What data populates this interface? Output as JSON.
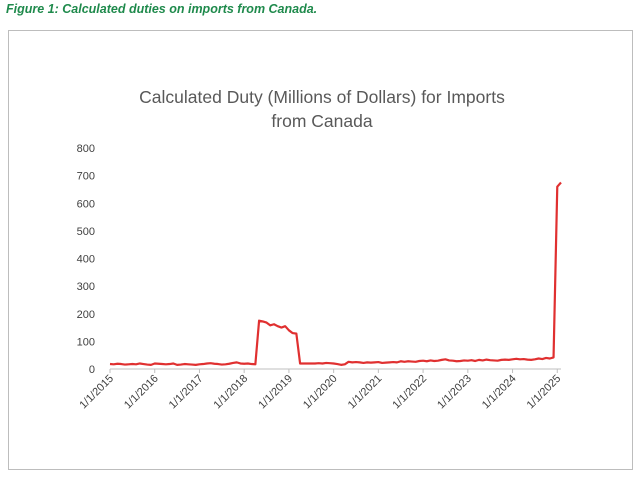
{
  "caption": "Figure 1: Calculated duties on imports from Canada.",
  "colors": {
    "caption": "#1f8a4c",
    "series": "#e03030",
    "axis": "#bfbfbf",
    "text": "#404040"
  },
  "chart_data": {
    "type": "line",
    "title_lines": [
      "Calculated Duty (Millions of Dollars) for Imports",
      "from Canada"
    ],
    "xlabel": "",
    "ylabel": "",
    "ylim": [
      0,
      800
    ],
    "y_ticks": [
      0,
      100,
      200,
      300,
      400,
      500,
      600,
      700,
      800
    ],
    "grid": false,
    "legend": "none",
    "x_start": "2015-01",
    "x_tick_labels": [
      "1/1/2015",
      "1/1/2016",
      "1/1/2017",
      "1/1/2018",
      "1/1/2019",
      "1/1/2020",
      "1/1/2021",
      "1/1/2022",
      "1/1/2023",
      "1/1/2024",
      "1/1/2025"
    ],
    "series": [
      {
        "values": [
          18,
          17,
          19,
          18,
          16,
          17,
          18,
          17,
          20,
          18,
          16,
          15,
          20,
          19,
          18,
          17,
          18,
          20,
          15,
          16,
          18,
          17,
          16,
          15,
          17,
          18,
          20,
          21,
          19,
          18,
          16,
          17,
          19,
          22,
          24,
          20,
          19,
          20,
          18,
          17,
          175,
          172,
          168,
          158,
          162,
          155,
          150,
          155,
          140,
          130,
          128,
          20,
          20,
          20,
          20,
          20,
          21,
          20,
          22,
          21,
          20,
          18,
          15,
          17,
          26,
          24,
          25,
          24,
          22,
          24,
          23,
          24,
          25,
          22,
          23,
          24,
          25,
          24,
          28,
          26,
          28,
          27,
          26,
          29,
          30,
          28,
          31,
          29,
          30,
          33,
          35,
          31,
          30,
          28,
          29,
          31,
          30,
          32,
          29,
          33,
          31,
          34,
          32,
          31,
          30,
          33,
          34,
          33,
          35,
          37,
          35,
          36,
          34,
          33,
          35,
          38,
          36,
          40,
          38,
          42,
          660,
          675
        ]
      }
    ]
  }
}
